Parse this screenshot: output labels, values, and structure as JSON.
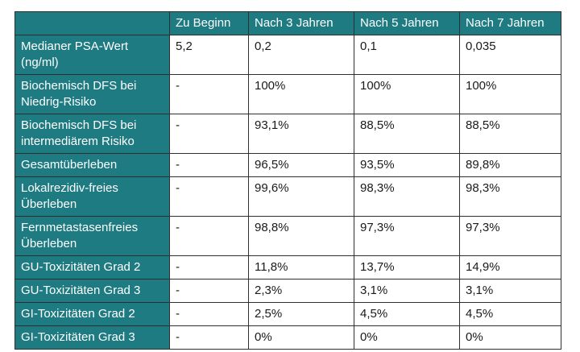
{
  "table": {
    "corner": "",
    "columns": [
      "Zu Beginn",
      "Nach 3 Jahren",
      "Nach 5 Jahren",
      "Nach 7 Jahren"
    ],
    "rows": [
      {
        "label": "Medianer PSA-Wert (ng/ml)",
        "values": [
          "5,2",
          "0,2",
          "0,1",
          "0,035"
        ]
      },
      {
        "label": "Biochemisch DFS bei Niedrig-Risiko",
        "values": [
          "-",
          "100%",
          "100%",
          "100%"
        ]
      },
      {
        "label": "Biochemisch DFS bei intermediärem Risiko",
        "values": [
          "-",
          "93,1%",
          "88,5%",
          "88,5%"
        ]
      },
      {
        "label": "Gesamtüberleben",
        "values": [
          "-",
          "96,5%",
          "93,5%",
          "89,8%"
        ]
      },
      {
        "label": "Lokalrezidiv-freies Überleben",
        "values": [
          "-",
          "99,6%",
          "98,3%",
          "98,3%"
        ]
      },
      {
        "label": "Fernmetastasenfreies Überleben",
        "values": [
          "-",
          "98,8%",
          "97,3%",
          "97,3%"
        ]
      },
      {
        "label": "GU-Toxizitäten Grad 2",
        "values": [
          "-",
          "11,8%",
          "13,7%",
          "14,9%"
        ]
      },
      {
        "label": "GU-Toxizitäten Grad 3",
        "values": [
          "-",
          "2,3%",
          "3,1%",
          "3,1%"
        ]
      },
      {
        "label": "GI-Toxizitäten Grad 2",
        "values": [
          "-",
          "2,5%",
          "4,5%",
          "4,5%"
        ]
      },
      {
        "label": "GI-Toxizitäten Grad 3",
        "values": [
          "-",
          "0%",
          "0%",
          "0%"
        ]
      }
    ]
  },
  "colors": {
    "header_bg": "#1e7b82",
    "header_text": "#ffffff",
    "border": "#2f2f2f"
  }
}
